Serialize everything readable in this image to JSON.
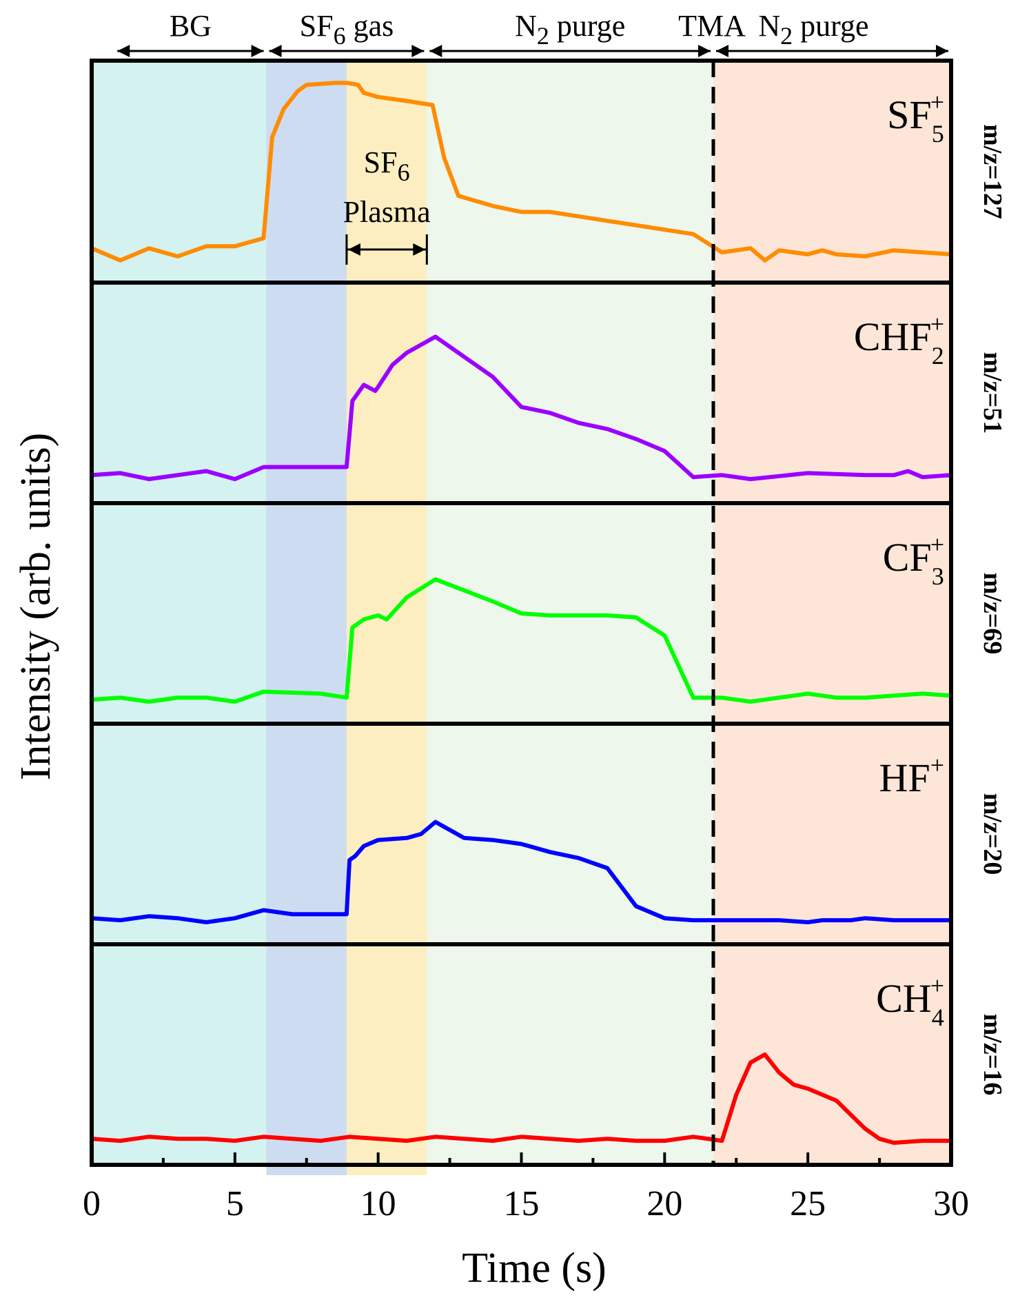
{
  "chart_data": {
    "type": "line",
    "xlabel": "Time (s)",
    "ylabel": "Intensity (arb. units)",
    "xlim": [
      0,
      30
    ],
    "xticks": [
      "0",
      "5",
      "10",
      "15",
      "20",
      "25",
      "30"
    ],
    "tmaMarker": {
      "x": 21.7,
      "label": "TMA"
    },
    "plasmaAnnotation": {
      "text": "Plasma",
      "species": "SF",
      "sub": "6",
      "x0": 8.9,
      "x1": 11.7
    },
    "phases": [
      {
        "name": "BG",
        "start": 0,
        "end": 6.1,
        "color": "#d3f2f0",
        "label": "BG",
        "labelSub": "",
        "labelRest": ""
      },
      {
        "name": "SF6 gas",
        "start": 6.1,
        "end": 8.9,
        "color": "#cddcf1",
        "label": "SF",
        "labelSub": "6",
        "labelRest": "gas"
      },
      {
        "name": "SF6 plasma",
        "start": 8.9,
        "end": 11.7,
        "color": "#fdeec1",
        "label": "",
        "labelSub": "",
        "labelRest": ""
      },
      {
        "name": "N2 purge",
        "start": 11.7,
        "end": 21.7,
        "color": "#edf7ec",
        "label": "N",
        "labelSub": "2",
        "labelRest": "purge"
      },
      {
        "name": "TMA N2 purge",
        "start": 21.7,
        "end": 30,
        "color": "#fde6d7",
        "label": "N",
        "labelSub": "2",
        "labelRest": "purge"
      }
    ],
    "arrowSpans": [
      {
        "start": 0.8,
        "end": 6.1
      },
      {
        "start": 6.1,
        "end": 11.7
      },
      {
        "start": 11.7,
        "end": 21.7
      },
      {
        "start": 21.7,
        "end": 30
      }
    ],
    "series": [
      {
        "name": "SF5+",
        "ion": "SF",
        "sub": "5",
        "sup": "+",
        "mz": "m/z=127",
        "color": "#ff8c00",
        "x": [
          0,
          1,
          2,
          3,
          4,
          5,
          6,
          6.3,
          6.7,
          7.2,
          7.5,
          8.5,
          8.9,
          9.3,
          9.5,
          10,
          11,
          11.9,
          12.3,
          12.8,
          14,
          15,
          16,
          21,
          22,
          23,
          23.5,
          24,
          25,
          25.5,
          26,
          27,
          28,
          29,
          30
        ],
        "y": [
          0.07,
          0.01,
          0.07,
          0.03,
          0.08,
          0.08,
          0.12,
          0.62,
          0.76,
          0.85,
          0.88,
          0.89,
          0.89,
          0.88,
          0.84,
          0.82,
          0.8,
          0.78,
          0.52,
          0.33,
          0.28,
          0.25,
          0.25,
          0.14,
          0.05,
          0.07,
          0.01,
          0.06,
          0.04,
          0.06,
          0.04,
          0.03,
          0.06,
          0.05,
          0.04
        ],
        "ymin": -0.1,
        "ymax": 1.0
      },
      {
        "name": "CHF2+",
        "ion": "CHF",
        "sub": "2",
        "sup": "+",
        "mz": "m/z=51",
        "color": "#9b00ff",
        "x": [
          0,
          1,
          2,
          3,
          4,
          5,
          6,
          8,
          8.9,
          9.1,
          9.5,
          9.9,
          10,
          10.5,
          11,
          12,
          14,
          15,
          16,
          17,
          18,
          19,
          20,
          21,
          22,
          23,
          25,
          27,
          28,
          28.5,
          29,
          30
        ],
        "y": [
          0.04,
          0.05,
          0.02,
          0.04,
          0.06,
          0.02,
          0.08,
          0.08,
          0.08,
          0.41,
          0.49,
          0.46,
          0.48,
          0.59,
          0.65,
          0.73,
          0.53,
          0.38,
          0.35,
          0.3,
          0.27,
          0.22,
          0.16,
          0.03,
          0.04,
          0.02,
          0.05,
          0.04,
          0.04,
          0.06,
          0.03,
          0.04
        ],
        "ymin": -0.1,
        "ymax": 1.0
      },
      {
        "name": "CF3+",
        "ion": "CF",
        "sub": "3",
        "sup": "+",
        "mz": "m/z=69",
        "color": "#00ff00",
        "x": [
          0,
          1,
          2,
          3,
          4,
          5,
          6,
          8,
          8.9,
          9.1,
          9.5,
          10,
          10.3,
          11,
          12,
          14,
          15,
          16,
          17,
          18,
          19,
          20,
          21,
          22,
          23,
          25,
          26,
          27,
          28,
          29,
          30
        ],
        "y": [
          0.02,
          0.03,
          0.01,
          0.03,
          0.03,
          0.01,
          0.06,
          0.05,
          0.03,
          0.38,
          0.42,
          0.44,
          0.42,
          0.53,
          0.62,
          0.51,
          0.45,
          0.44,
          0.44,
          0.44,
          0.43,
          0.34,
          0.03,
          0.03,
          0.01,
          0.05,
          0.03,
          0.03,
          0.04,
          0.05,
          0.04
        ],
        "ymin": -0.1,
        "ymax": 1.0
      },
      {
        "name": "HF+",
        "ion": "HF",
        "sub": "",
        "sup": "+",
        "mz": "m/z=20",
        "color": "#0000ff",
        "x": [
          0,
          1,
          2,
          3,
          4,
          5,
          6,
          7,
          8,
          8.9,
          9,
          9.2,
          9.5,
          10,
          11,
          11.5,
          12,
          13,
          14,
          15,
          16,
          17,
          18,
          19,
          20,
          21,
          22,
          24,
          25,
          25.5,
          26,
          26.5,
          27,
          28,
          29,
          30
        ],
        "y": [
          0.03,
          0.02,
          0.04,
          0.03,
          0.01,
          0.03,
          0.07,
          0.05,
          0.05,
          0.05,
          0.32,
          0.34,
          0.39,
          0.42,
          0.43,
          0.45,
          0.51,
          0.43,
          0.42,
          0.4,
          0.36,
          0.33,
          0.28,
          0.09,
          0.03,
          0.02,
          0.02,
          0.02,
          0.01,
          0.02,
          0.02,
          0.02,
          0.03,
          0.02,
          0.02,
          0.02
        ],
        "ymin": -0.1,
        "ymax": 1.0
      },
      {
        "name": "CH4+",
        "ion": "CH",
        "sub": "4",
        "sup": "+",
        "mz": "m/z=16",
        "color": "#ff0000",
        "x": [
          0,
          1,
          2,
          3,
          4,
          5,
          6,
          7,
          8,
          9,
          10,
          11,
          12,
          13,
          14,
          15,
          16,
          17,
          18,
          19,
          20,
          21,
          22,
          22.5,
          23,
          23.5,
          24,
          24.5,
          25,
          26,
          26.5,
          27,
          27.5,
          28,
          29,
          30
        ],
        "y": [
          0.03,
          0.02,
          0.04,
          0.03,
          0.03,
          0.02,
          0.04,
          0.03,
          0.02,
          0.04,
          0.03,
          0.02,
          0.04,
          0.03,
          0.02,
          0.04,
          0.03,
          0.02,
          0.03,
          0.02,
          0.02,
          0.04,
          0.02,
          0.25,
          0.41,
          0.45,
          0.36,
          0.3,
          0.28,
          0.22,
          0.15,
          0.08,
          0.03,
          0.01,
          0.02,
          0.02
        ],
        "ymin": -0.1,
        "ymax": 1.0
      }
    ]
  }
}
